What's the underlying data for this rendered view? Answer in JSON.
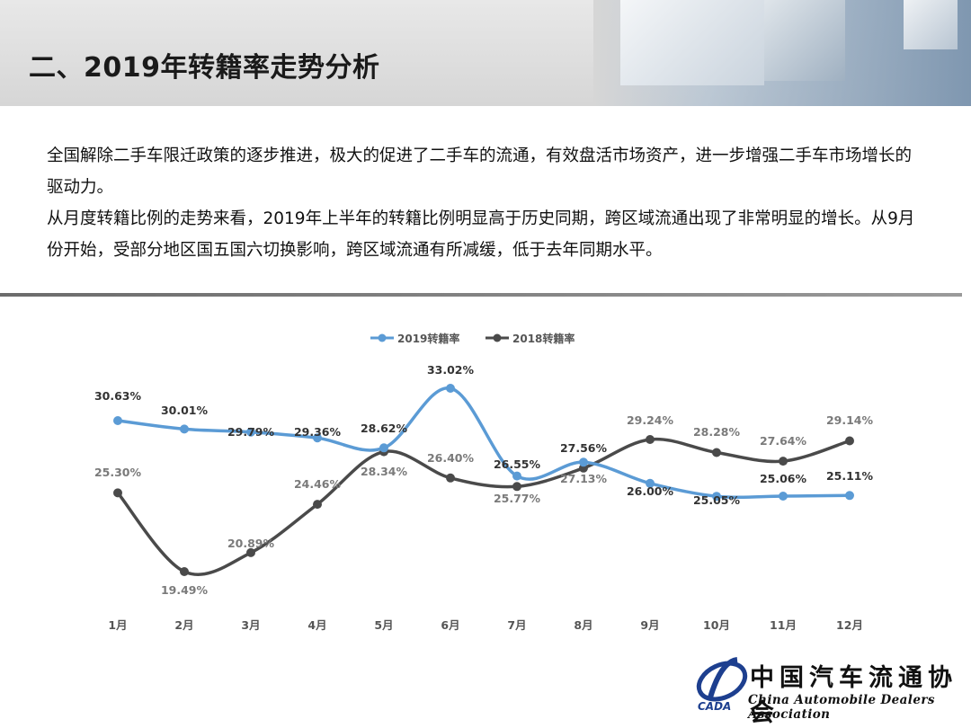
{
  "header": {
    "title": "二、2019年转籍率走势分析"
  },
  "intro": {
    "paragraphs": [
      "全国解除二手车限迁政策的逐步推进，极大的促进了二手车的流通，有效盘活市场资产，进一步增强二手车市场增长的驱动力。",
      "从月度转籍比例的走势来看，2019年上半年的转籍比例明显高于历史同期，跨区域流通出现了非常明显的增长。从9月份开始，受部分地区国五国六切换影响，跨区域流通有所减缓，低于去年同期水平。"
    ]
  },
  "chart_data": {
    "type": "line",
    "categories": [
      "1月",
      "2月",
      "3月",
      "4月",
      "5月",
      "6月",
      "7月",
      "8月",
      "9月",
      "10月",
      "11月",
      "12月"
    ],
    "series": [
      {
        "name": "2019转籍率",
        "color": "#5b9bd5",
        "values": [
          30.63,
          30.01,
          29.79,
          29.36,
          28.62,
          33.02,
          26.55,
          27.56,
          26.0,
          25.05,
          25.06,
          25.11
        ],
        "labels": [
          "30.63%",
          "30.01%",
          "29.79%",
          "29.36%",
          "28.62%",
          "33.02%",
          "26.55%",
          "27.56%",
          "26.00%",
          "25.05%",
          "25.06%",
          "25.11%"
        ]
      },
      {
        "name": "2018转籍率",
        "color": "#4a4a4a",
        "values": [
          25.3,
          19.49,
          20.89,
          24.46,
          28.34,
          26.4,
          25.77,
          27.13,
          29.24,
          28.28,
          27.64,
          29.14
        ],
        "labels": [
          "25.30%",
          "19.49%",
          "20.89%",
          "24.46%",
          "28.34%",
          "26.40%",
          "25.77%",
          "27.13%",
          "29.24%",
          "28.28%",
          "27.64%",
          "29.14%"
        ]
      }
    ],
    "legend": "top-center",
    "grid": false,
    "smooth": true
  },
  "logo": {
    "text_cn": "中国汽车流通协会",
    "text_en": "China Automobile Dealers Association",
    "mark_text": "CADA"
  }
}
